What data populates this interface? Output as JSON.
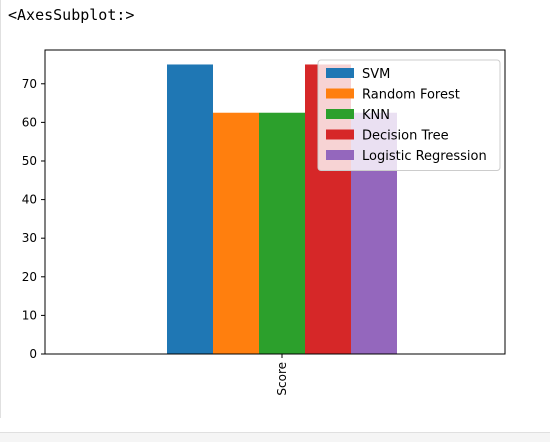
{
  "output_label": "<AxesSubplot:>",
  "chart_data": {
    "type": "bar",
    "categories": [
      "Score"
    ],
    "series": [
      {
        "name": "SVM",
        "values": [
          75.0
        ],
        "color": "#1f77b4"
      },
      {
        "name": "Random Forest",
        "values": [
          62.5
        ],
        "color": "#ff7f0e"
      },
      {
        "name": "KNN",
        "values": [
          62.5
        ],
        "color": "#2ca02c"
      },
      {
        "name": "Decision Tree",
        "values": [
          75.0
        ],
        "color": "#d62728"
      },
      {
        "name": "Logistic Regression",
        "values": [
          62.5
        ],
        "color": "#9467bd"
      }
    ],
    "ylim": [
      0,
      78.75
    ],
    "yticks": [
      0,
      10,
      20,
      30,
      40,
      50,
      60,
      70
    ],
    "xlabel": "",
    "ylabel": "",
    "title": "",
    "legend_position": "upper-right",
    "grid": false
  }
}
